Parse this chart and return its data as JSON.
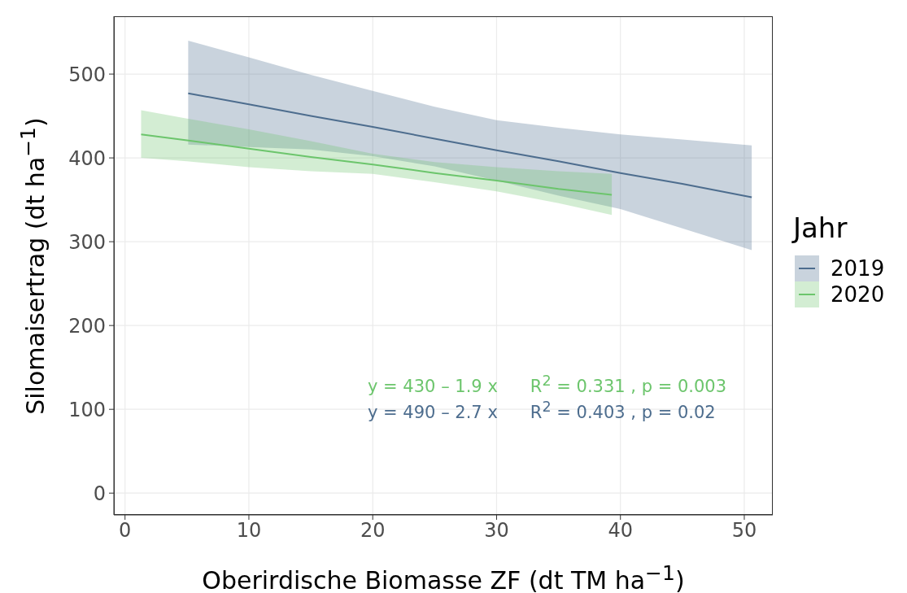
{
  "chart_data": {
    "type": "line",
    "xlabel": "Oberirdische Biomasse ZF (dt TM ha$^{−1}$)",
    "ylabel": "Silomaisertrag (dt ha$^{−1}$)",
    "legend_title": "Jahr",
    "legend": "right",
    "grid": true,
    "marker": "none",
    "xlim": [
      -0.9,
      52.3
    ],
    "xticks": [
      0,
      10,
      20,
      30,
      40,
      50
    ],
    "ylim": [
      -26,
      569
    ],
    "yticks": [
      0,
      100,
      200,
      300,
      400,
      500
    ],
    "series": [
      {
        "name": "2019",
        "color": "#4d6d8e",
        "x": [
          5.1,
          10,
          15,
          20,
          25,
          30,
          35,
          40,
          45,
          50.6
        ],
        "values": [
          477,
          464,
          450,
          437,
          423,
          409,
          396,
          382,
          369,
          353
        ],
        "upper": [
          540,
          520,
          499,
          480,
          461,
          445,
          436,
          428,
          422,
          415
        ],
        "lower": [
          416,
          413,
          410,
          402,
          390,
          373,
          355,
          339,
          316,
          290
        ]
      },
      {
        "name": "2020",
        "color": "#6cc56c",
        "x": [
          1.3,
          5,
          10,
          15,
          20,
          25,
          30,
          35,
          39.3
        ],
        "values": [
          428,
          421,
          411,
          401,
          392,
          382,
          373,
          363,
          356
        ],
        "upper": [
          457,
          447,
          434,
          420,
          405,
          395,
          389,
          384,
          381
        ],
        "lower": [
          400,
          396,
          389,
          384,
          381,
          371,
          360,
          346,
          332
        ]
      }
    ],
    "annotations": [
      "y = 430 – 1.9 x      R$^{2}$ = 0.331 , p = 0.003",
      "y = 490 – 2.7 x      R$^{2}$ = 0.403 , p = 0.02"
    ]
  }
}
